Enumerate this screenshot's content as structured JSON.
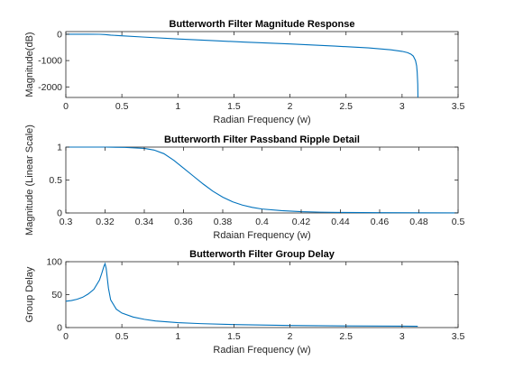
{
  "chart_data": [
    {
      "type": "line",
      "title": "Butterworth Filter Magnitude Response",
      "xlabel": "Radian Frequency (w)",
      "ylabel": "Magnitude(dB)",
      "xlim": [
        0,
        3.5
      ],
      "ylim": [
        -2400,
        100
      ],
      "xticks": [
        0,
        0.5,
        1,
        1.5,
        2,
        2.5,
        3,
        3.5
      ],
      "xtick_labels": [
        "0",
        "0.5",
        "1",
        "1.5",
        "2",
        "2.5",
        "3",
        "3.5"
      ],
      "yticks": [
        0,
        -1000,
        -2000
      ],
      "ytick_labels": [
        "0",
        "-1000",
        "-2000"
      ],
      "grid": false,
      "series": [
        {
          "color": "#0072bd",
          "x": [
            0,
            0.1,
            0.2,
            0.3,
            0.35,
            0.4,
            0.5,
            0.7,
            1.0,
            1.3,
            1.6,
            2.0,
            2.4,
            2.7,
            2.9,
            3.0,
            3.05,
            3.08,
            3.1,
            3.12,
            3.13,
            3.135,
            3.14,
            3.1416
          ],
          "y": [
            0,
            0,
            0,
            -3,
            -15,
            -35,
            -60,
            -110,
            -180,
            -240,
            -300,
            -370,
            -450,
            -520,
            -590,
            -650,
            -700,
            -760,
            -830,
            -1000,
            -1200,
            -1450,
            -1900,
            -2400
          ]
        }
      ]
    },
    {
      "type": "line",
      "title": "Butterworth Filter Passband Ripple Detail",
      "xlabel": "Rdaian Frequency (w)",
      "ylabel": "Magnitude (Linear Scale)",
      "xlim": [
        0.3,
        0.5
      ],
      "ylim": [
        0,
        1
      ],
      "xticks": [
        0.3,
        0.32,
        0.34,
        0.36,
        0.38,
        0.4,
        0.42,
        0.44,
        0.46,
        0.48,
        0.5
      ],
      "xtick_labels": [
        "0.3",
        "0.32",
        "0.34",
        "0.36",
        "0.38",
        "0.4",
        "0.42",
        "0.44",
        "0.46",
        "0.48",
        "0.5"
      ],
      "yticks": [
        0,
        0.5,
        1
      ],
      "ytick_labels": [
        "0",
        "0.5",
        "1"
      ],
      "grid": false,
      "series": [
        {
          "color": "#0072bd",
          "x": [
            0.3,
            0.31,
            0.32,
            0.33,
            0.34,
            0.345,
            0.35,
            0.355,
            0.36,
            0.365,
            0.37,
            0.375,
            0.38,
            0.385,
            0.39,
            0.395,
            0.4,
            0.41,
            0.42,
            0.43,
            0.44,
            0.46,
            0.48,
            0.5
          ],
          "y": [
            1.0,
            1.0,
            1.0,
            0.995,
            0.98,
            0.955,
            0.9,
            0.8,
            0.68,
            0.56,
            0.44,
            0.33,
            0.24,
            0.17,
            0.12,
            0.085,
            0.06,
            0.035,
            0.02,
            0.012,
            0.008,
            0.004,
            0.002,
            0.001
          ]
        }
      ]
    },
    {
      "type": "line",
      "title": "Butterworth Filter Group Delay",
      "xlabel": "Radian Frequency (w)",
      "ylabel": "Group Delay",
      "xlim": [
        0,
        3.5
      ],
      "ylim": [
        0,
        100
      ],
      "xticks": [
        0,
        0.5,
        1,
        1.5,
        2,
        2.5,
        3,
        3.5
      ],
      "xtick_labels": [
        "0",
        "0.5",
        "1",
        "1.5",
        "2",
        "2.5",
        "3",
        "3.5"
      ],
      "yticks": [
        0,
        50,
        100
      ],
      "ytick_labels": [
        "0",
        "50",
        "100"
      ],
      "grid": false,
      "series": [
        {
          "color": "#0072bd",
          "x": [
            0,
            0.05,
            0.1,
            0.15,
            0.2,
            0.25,
            0.3,
            0.32,
            0.34,
            0.35,
            0.36,
            0.38,
            0.4,
            0.45,
            0.5,
            0.6,
            0.7,
            0.8,
            1.0,
            1.2,
            1.5,
            2.0,
            2.5,
            3.0,
            3.14
          ],
          "y": [
            40,
            41,
            43,
            46,
            51,
            58,
            72,
            82,
            93,
            97,
            90,
            60,
            42,
            28,
            22,
            16,
            12.5,
            10,
            7.5,
            6,
            4.5,
            3.2,
            2.5,
            2.1,
            2
          ]
        }
      ]
    }
  ]
}
